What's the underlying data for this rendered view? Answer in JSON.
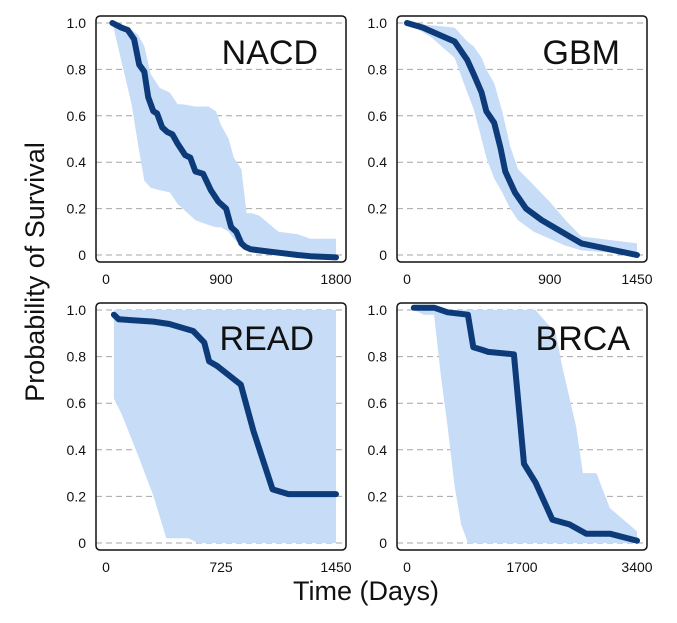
{
  "colors": {
    "line": "#0d3b7a",
    "band": "#c6dcf7",
    "grid": "#a6a6a6",
    "frame": "#111111"
  },
  "labels": {
    "xlabel": "Time (Days)",
    "ylabel": "Probability of Survival"
  },
  "chart_data": [
    {
      "type": "line",
      "title": "NACD",
      "xlim": [
        0,
        1800
      ],
      "ylim": [
        -0.03,
        1.03
      ],
      "xticks": [
        0,
        900,
        1800
      ],
      "xtick_labels": [
        "0",
        "900",
        "1800"
      ],
      "yticks": [
        0,
        0.2,
        0.4,
        0.6,
        0.8,
        1.0
      ],
      "ytick_labels": [
        "0",
        "0.2",
        "0.4",
        "0.6",
        "0.8",
        "1.0"
      ],
      "grid": "horizontal dashed",
      "series": [
        {
          "x": [
            50,
            120,
            170,
            220,
            260,
            300,
            330,
            370,
            400,
            440,
            480,
            520,
            560,
            620,
            660,
            700,
            760,
            820,
            880,
            940,
            980,
            1020,
            1060,
            1090,
            1130,
            1200,
            1350,
            1500,
            1600,
            1800
          ],
          "y": [
            1.0,
            0.98,
            0.97,
            0.93,
            0.82,
            0.79,
            0.68,
            0.62,
            0.61,
            0.55,
            0.53,
            0.52,
            0.48,
            0.43,
            0.42,
            0.36,
            0.35,
            0.28,
            0.23,
            0.2,
            0.12,
            0.1,
            0.05,
            0.035,
            0.025,
            0.02,
            0.01,
            0.0,
            -0.005,
            -0.01
          ]
        }
      ],
      "band": {
        "x": [
          50,
          200,
          250,
          300,
          350,
          420,
          500,
          560,
          600,
          700,
          800,
          860,
          900,
          960,
          1000,
          1060,
          1100,
          1140,
          1200,
          1350,
          1500,
          1600,
          1800
        ],
        "lower": [
          1.0,
          0.65,
          0.48,
          0.32,
          0.29,
          0.28,
          0.27,
          0.22,
          0.2,
          0.15,
          0.13,
          0.12,
          0.12,
          0.1,
          0.07,
          0.04,
          0.02,
          0.02,
          0.02,
          0.01,
          -0.01,
          -0.01,
          -0.01
        ],
        "upper": [
          1.0,
          0.97,
          0.95,
          0.9,
          0.78,
          0.72,
          0.7,
          0.65,
          0.65,
          0.64,
          0.64,
          0.62,
          0.56,
          0.5,
          0.42,
          0.37,
          0.18,
          0.18,
          0.17,
          0.1,
          0.09,
          0.07,
          0.07
        ]
      }
    },
    {
      "type": "line",
      "title": "GBM",
      "xlim": [
        0,
        1450
      ],
      "ylim": [
        -0.03,
        1.03
      ],
      "xticks": [
        0,
        900,
        1450
      ],
      "xtick_labels": [
        "0",
        "900",
        "1450"
      ],
      "yticks": [
        0,
        0.2,
        0.4,
        0.6,
        0.8,
        1.0
      ],
      "ytick_labels": [
        "0",
        "0.2",
        "0.4",
        "0.6",
        "0.8",
        "1.0"
      ],
      "grid": "horizontal dashed",
      "series": [
        {
          "x": [
            0,
            100,
            200,
            300,
            380,
            420,
            470,
            500,
            550,
            590,
            620,
            680,
            750,
            850,
            950,
            1050,
            1100,
            1450
          ],
          "y": [
            1.0,
            0.98,
            0.95,
            0.92,
            0.84,
            0.78,
            0.7,
            0.62,
            0.57,
            0.46,
            0.36,
            0.27,
            0.2,
            0.15,
            0.11,
            0.07,
            0.05,
            0.0
          ]
        }
      ],
      "band": {
        "x": [
          0,
          150,
          300,
          380,
          420,
          470,
          500,
          550,
          600,
          650,
          700,
          800,
          900,
          1000,
          1100,
          1450
        ],
        "lower": [
          1.0,
          0.94,
          0.85,
          0.7,
          0.63,
          0.5,
          0.42,
          0.33,
          0.27,
          0.2,
          0.15,
          0.1,
          0.07,
          0.04,
          0.02,
          0.0
        ],
        "upper": [
          1.0,
          0.99,
          0.98,
          0.92,
          0.9,
          0.85,
          0.8,
          0.74,
          0.62,
          0.47,
          0.37,
          0.3,
          0.23,
          0.15,
          0.08,
          0.05
        ]
      }
    },
    {
      "type": "line",
      "title": "READ",
      "xlim": [
        0,
        1450
      ],
      "ylim": [
        -0.03,
        1.03
      ],
      "xticks": [
        0,
        725,
        1450
      ],
      "xtick_labels": [
        "0",
        "725",
        "1450"
      ],
      "yticks": [
        0,
        0.2,
        0.4,
        0.6,
        0.8,
        1.0
      ],
      "ytick_labels": [
        "0",
        "0.2",
        "0.4",
        "0.6",
        "0.8",
        "1.0"
      ],
      "grid": "horizontal dashed",
      "series": [
        {
          "x": [
            50,
            80,
            300,
            400,
            550,
            620,
            650,
            700,
            850,
            930,
            1050,
            1150,
            1450
          ],
          "y": [
            0.98,
            0.96,
            0.95,
            0.94,
            0.91,
            0.86,
            0.78,
            0.76,
            0.68,
            0.48,
            0.23,
            0.21,
            0.21
          ]
        }
      ],
      "band": {
        "x": [
          50,
          100,
          200,
          300,
          380,
          520,
          580,
          660,
          800,
          900,
          1000,
          1100,
          1450
        ],
        "lower": [
          0.62,
          0.55,
          0.38,
          0.2,
          0.02,
          0.02,
          0.0,
          0.0,
          0.0,
          0.0,
          0.0,
          0.0,
          0.0
        ],
        "upper": [
          1.0,
          1.0,
          1.0,
          1.0,
          1.0,
          1.0,
          1.0,
          1.0,
          1.0,
          1.0,
          1.0,
          1.0,
          1.0
        ]
      }
    },
    {
      "type": "line",
      "title": "BRCA",
      "xlim": [
        0,
        3400
      ],
      "ylim": [
        -0.03,
        1.03
      ],
      "xticks": [
        0,
        1700,
        3400
      ],
      "xtick_labels": [
        "0",
        "1700",
        "3400"
      ],
      "yticks": [
        0,
        0.2,
        0.4,
        0.6,
        0.8,
        1.0
      ],
      "ytick_labels": [
        "0",
        "0.2",
        "0.4",
        "0.6",
        "0.8",
        "1.0"
      ],
      "grid": "horizontal dashed",
      "series": [
        {
          "x": [
            100,
            400,
            600,
            900,
            980,
            1100,
            1200,
            1580,
            1730,
            1900,
            2150,
            2400,
            2650,
            3000,
            3400
          ],
          "y": [
            1.01,
            1.01,
            0.99,
            0.98,
            0.84,
            0.83,
            0.82,
            0.81,
            0.34,
            0.26,
            0.1,
            0.08,
            0.04,
            0.04,
            0.01
          ]
        }
      ],
      "band": {
        "x": [
          100,
          250,
          400,
          500,
          600,
          700,
          800,
          900,
          1100,
          1500,
          1900,
          2200,
          2300,
          2500,
          2600,
          2800,
          3000,
          3400
        ],
        "lower": [
          1.0,
          0.98,
          0.98,
          0.72,
          0.5,
          0.25,
          0.08,
          0.0,
          0.0,
          0.0,
          0.0,
          0.0,
          0.0,
          0.0,
          0.0,
          0.0,
          0.0,
          0.0
        ],
        "upper": [
          1.0,
          1.0,
          1.0,
          1.0,
          1.0,
          1.0,
          1.0,
          1.0,
          1.0,
          1.0,
          1.0,
          0.9,
          0.75,
          0.5,
          0.3,
          0.3,
          0.15,
          0.05
        ]
      }
    }
  ]
}
